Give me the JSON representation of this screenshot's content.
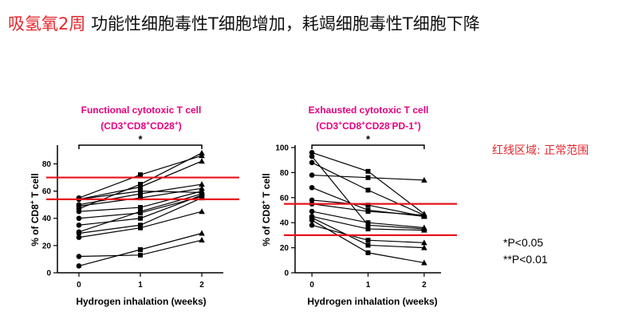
{
  "slide": {
    "title_red": "吸氢氧2周",
    "title_black": "功能性细胞毒性T细胞增加，耗竭细胞毒性T细胞下降",
    "normal_range_note": "红线区域: 正常范围",
    "p_notes": [
      "*P<0.05",
      "**P<0.01"
    ]
  },
  "colors": {
    "title_red": "#e8262d",
    "chart_title": "#e6007e",
    "normal_line": "#e8131f",
    "series": "#000000"
  },
  "chart_data": [
    {
      "type": "line",
      "title": "Functional cytotoxic T cell",
      "subtitle_parts": [
        "(CD3",
        "+",
        "CD8",
        "+",
        "CD28",
        "+",
        ")"
      ],
      "xlabel": "Hydrogen inhalation (weeks)",
      "ylabel_parts": [
        "% of CD8",
        "+",
        " T cell"
      ],
      "x": [
        0,
        1,
        2
      ],
      "xlim": [
        -0.35,
        2.35
      ],
      "ylim": [
        0,
        92
      ],
      "yticks": [
        0,
        20,
        40,
        60,
        80
      ],
      "normal_range_lines": [
        70,
        54
      ],
      "significance": {
        "from": 0,
        "to": 2,
        "label": "*"
      },
      "markers": [
        "circle",
        "square",
        "triangle"
      ],
      "series": [
        {
          "values": [
            5,
            17,
            29
          ]
        },
        {
          "values": [
            12,
            13,
            24
          ]
        },
        {
          "values": [
            26,
            33,
            45
          ]
        },
        {
          "values": [
            29,
            35,
            55
          ]
        },
        {
          "values": [
            30,
            45,
            58
          ]
        },
        {
          "values": [
            35,
            40,
            57
          ]
        },
        {
          "values": [
            40,
            44,
            56
          ]
        },
        {
          "values": [
            45,
            48,
            60
          ]
        },
        {
          "values": [
            47,
            65,
            88
          ]
        },
        {
          "values": [
            49,
            55,
            62
          ]
        },
        {
          "values": [
            50,
            58,
            65
          ]
        },
        {
          "values": [
            54,
            60,
            59
          ]
        },
        {
          "values": [
            55,
            72,
            86
          ]
        },
        {
          "values": [
            54,
            63,
            82
          ]
        }
      ]
    },
    {
      "type": "line",
      "title": "Exhausted cytotoxic T cell",
      "subtitle_parts": [
        "(CD3",
        "+",
        "CD8",
        "+",
        "CD28",
        "-",
        "PD-1",
        "+",
        ")"
      ],
      "xlabel": "Hydrogen inhalation (weeks)",
      "ylabel_parts": [
        "% of CD8",
        "+",
        " T cell"
      ],
      "x": [
        0,
        1,
        2
      ],
      "xlim": [
        -0.3,
        2.3
      ],
      "ylim": [
        0,
        100
      ],
      "yticks": [
        0,
        20,
        40,
        60,
        80,
        100
      ],
      "normal_range_lines": [
        55,
        30
      ],
      "significance": {
        "from": 0,
        "to": 2,
        "label": "*"
      },
      "markers": [
        "circle",
        "square",
        "triangle"
      ],
      "series": [
        {
          "values": [
            96,
            81,
            47
          ]
        },
        {
          "values": [
            88,
            66,
            46
          ]
        },
        {
          "values": [
            78,
            76,
            74
          ]
        },
        {
          "values": [
            68,
            50,
            45
          ]
        },
        {
          "values": [
            58,
            54,
            45
          ]
        },
        {
          "values": [
            55,
            49,
            46
          ]
        },
        {
          "values": [
            49,
            40,
            36
          ]
        },
        {
          "values": [
            45,
            35,
            34
          ]
        },
        {
          "values": [
            44,
            22,
            20
          ]
        },
        {
          "values": [
            42,
            16,
            8
          ]
        },
        {
          "values": [
            38,
            26,
            24
          ]
        },
        {
          "values": [
            93,
            38,
            35
          ]
        }
      ]
    }
  ]
}
